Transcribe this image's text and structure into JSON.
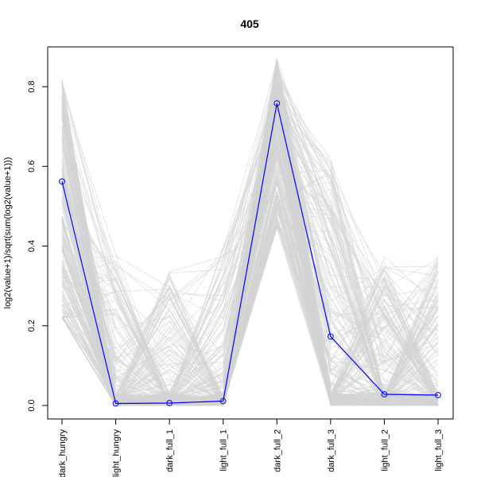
{
  "chart_data": {
    "type": "line",
    "title": "405",
    "xlabel": "",
    "ylabel": "log2(value+1)/sqrt(sum(log2(value+1)))",
    "categories": [
      "dark_hungry",
      "light_hungry",
      "dark_full_1",
      "light_full_1",
      "dark_full_2",
      "dark_full_3",
      "light_full_2",
      "light_full_3"
    ],
    "yticks": [
      0.0,
      0.2,
      0.4,
      0.6,
      0.8
    ],
    "ytick_labels": [
      "0.0",
      "0.2",
      "0.4",
      "0.6",
      "0.8"
    ],
    "ylim": [
      -0.03,
      0.9
    ],
    "grid": false,
    "highlight": {
      "values": [
        0.562,
        0.005,
        0.006,
        0.011,
        0.758,
        0.173,
        0.028,
        0.026
      ],
      "color": "#0000ff",
      "marker": "open-circle"
    },
    "background_lines": {
      "color": "#d3d3d3",
      "count": 250
    }
  }
}
